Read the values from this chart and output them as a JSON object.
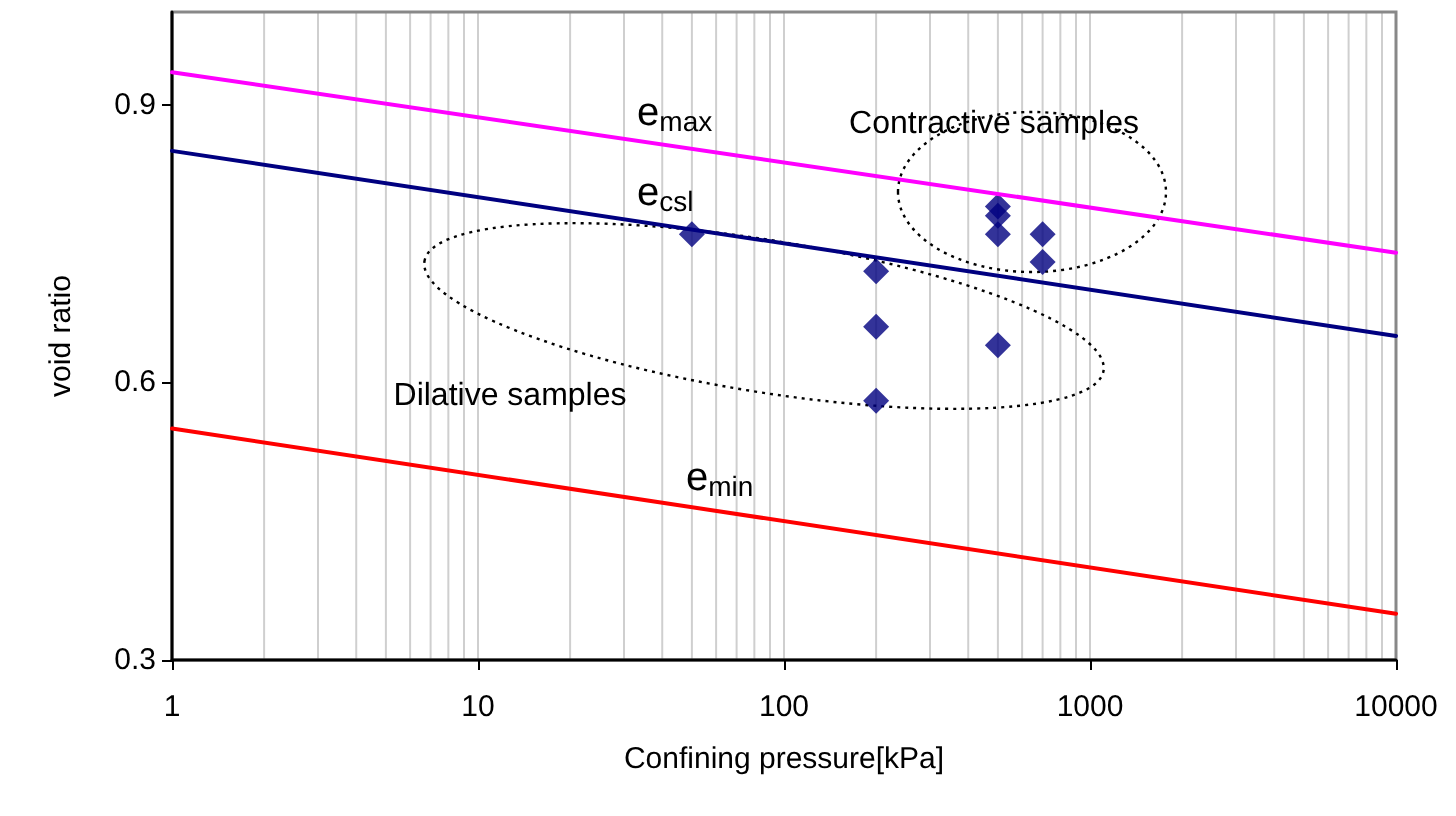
{
  "chart_data": {
    "type": "line",
    "xlabel": "Confining pressure[kPa]",
    "ylabel": "void ratio",
    "log": "x",
    "xlim": [
      1,
      10000
    ],
    "xticks": [
      1,
      10,
      100,
      1000,
      10000
    ],
    "ylim": [
      0.3,
      1.0
    ],
    "yticks": [
      0.3,
      0.6,
      0.9
    ],
    "grid": "x",
    "legend": false,
    "line_style": "solid",
    "series": [
      {
        "name": "e$_{max}$",
        "color": "#ff00ff",
        "x": [
          1,
          10000
        ],
        "values": [
          0.935,
          0.74
        ]
      },
      {
        "name": "e$_{csl}$",
        "color": "#000080",
        "x": [
          1,
          10000
        ],
        "values": [
          0.85,
          0.65
        ]
      },
      {
        "name": "e$_{min}$",
        "color": "#ff0000",
        "x": [
          1,
          10000
        ],
        "values": [
          0.55,
          0.35
        ]
      },
      {
        "type": "scatter",
        "marker": "diamond",
        "color": "#000080",
        "x": [
          50,
          200,
          200,
          200,
          500,
          500,
          500,
          500,
          700,
          700
        ],
        "values": [
          0.76,
          0.72,
          0.66,
          0.58,
          0.79,
          0.78,
          0.76,
          0.64,
          0.76,
          0.73
        ]
      }
    ],
    "annotations": [
      "Contractive samples",
      "Dilative samples"
    ]
  }
}
